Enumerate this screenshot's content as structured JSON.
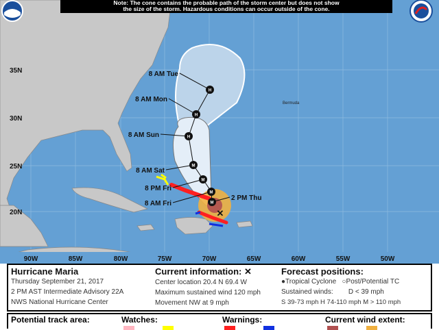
{
  "note": {
    "line1": "Note: The cone contains the probable path of the storm center but does not show",
    "line2": "the size of the storm. Hazardous conditions can occur outside of the cone."
  },
  "logos": {
    "left": "NOAA",
    "right": "NWS"
  },
  "axes": {
    "lon": [
      "90W",
      "85W",
      "80W",
      "75W",
      "70W",
      "65W",
      "60W",
      "55W",
      "50W"
    ],
    "lat": [
      "35N",
      "30N",
      "25N",
      "20N"
    ]
  },
  "map_labels": {
    "bermuda": "Bermuda"
  },
  "forecast_points": [
    {
      "label": "2 PM Thu",
      "type": "M",
      "current": true
    },
    {
      "label": "8 AM Fri",
      "type": "M"
    },
    {
      "label": "8 PM Fri",
      "type": "M"
    },
    {
      "label": "8 AM Sat",
      "type": "M"
    },
    {
      "label": "8 AM Sun",
      "type": "H"
    },
    {
      "label": "8 AM Mon",
      "type": "H"
    },
    {
      "label": "8 AM Tue",
      "type": "H"
    }
  ],
  "info": {
    "storm": "Hurricane Maria",
    "date": "Thursday September 21, 2017",
    "advisory": "2 PM AST Intermediate Advisory 22A",
    "center": "NWS National Hurricane Center",
    "current_title": "Current information: ✕",
    "location": "Center location 20.4 N 69.4 W",
    "wind": "Maximum sustained wind 120 mph",
    "movement": "Movement NW at 9 mph",
    "forecast_title": "Forecast positions:",
    "tc": "Tropical Cyclone",
    "post": "Post/Potential TC",
    "sustained": "Sustained winds:",
    "d": "D < 39 mph",
    "s": "S 39-73 mph",
    "hcat": "H 74-110 mph",
    "m": "M > 110 mph"
  },
  "legend": {
    "track": "Potential track area:",
    "watches": "Watches:",
    "warnings": "Warnings:",
    "wind": "Current wind extent:"
  },
  "colors": {
    "ocean": "#64a0d4",
    "land": "#c8c8c8",
    "hurricane_warning": "#ff2020",
    "ts_warning": "#1030e0",
    "ts_watch": "#ffff00",
    "hurricane_watch": "#ffb6c1",
    "hurricane_wind": "#b05050",
    "ts_wind": "#f0b040"
  }
}
